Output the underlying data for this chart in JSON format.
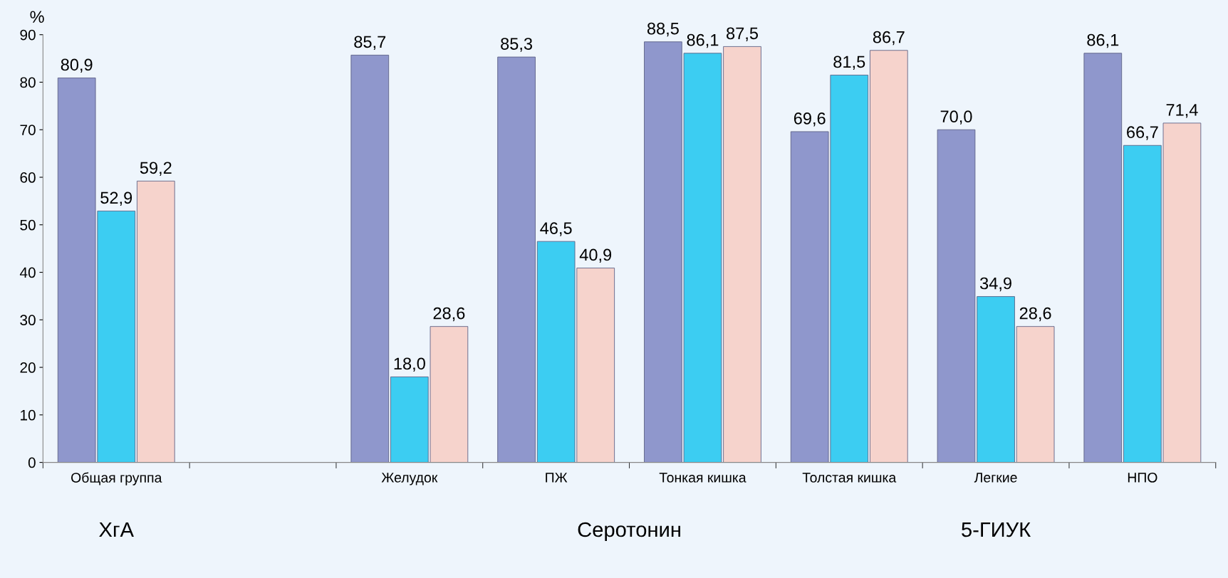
{
  "chart_data": {
    "type": "bar",
    "ylabel": "%",
    "categories": [
      "Общая группа",
      null,
      "Желудок",
      "ПЖ",
      "Тонкая кишка",
      "Толстая кишка",
      "Легкие",
      "НПО"
    ],
    "series": [
      {
        "color": "#8f97cc",
        "values": [
          80.9,
          null,
          85.7,
          85.3,
          88.5,
          69.6,
          70.0,
          86.1
        ],
        "value_labels": [
          "80,9",
          null,
          "85,7",
          "85,3",
          "88,5",
          "69,6",
          "70,0",
          "86,1"
        ]
      },
      {
        "color": "#3ccdf2",
        "values": [
          52.9,
          null,
          18.0,
          46.5,
          86.1,
          81.5,
          34.9,
          66.7
        ],
        "value_labels": [
          "52,9",
          null,
          "18,0",
          "46,5",
          "86,1",
          "81,5",
          "34,9",
          "66,7"
        ]
      },
      {
        "color": "#f6d3cc",
        "values": [
          59.2,
          null,
          28.6,
          40.9,
          87.5,
          86.7,
          28.6,
          71.4
        ],
        "value_labels": [
          "59,2",
          null,
          "28,6",
          "40,9",
          "87,5",
          "86,7",
          "28,6",
          "71,4"
        ]
      }
    ],
    "ylim": [
      0,
      90
    ],
    "yticks": [
      0,
      10,
      20,
      30,
      40,
      50,
      60,
      70,
      80,
      90
    ],
    "grid": false,
    "legend": false,
    "annotations": [
      "ХгА",
      "Серотонин",
      "5-ГИУК"
    ]
  }
}
